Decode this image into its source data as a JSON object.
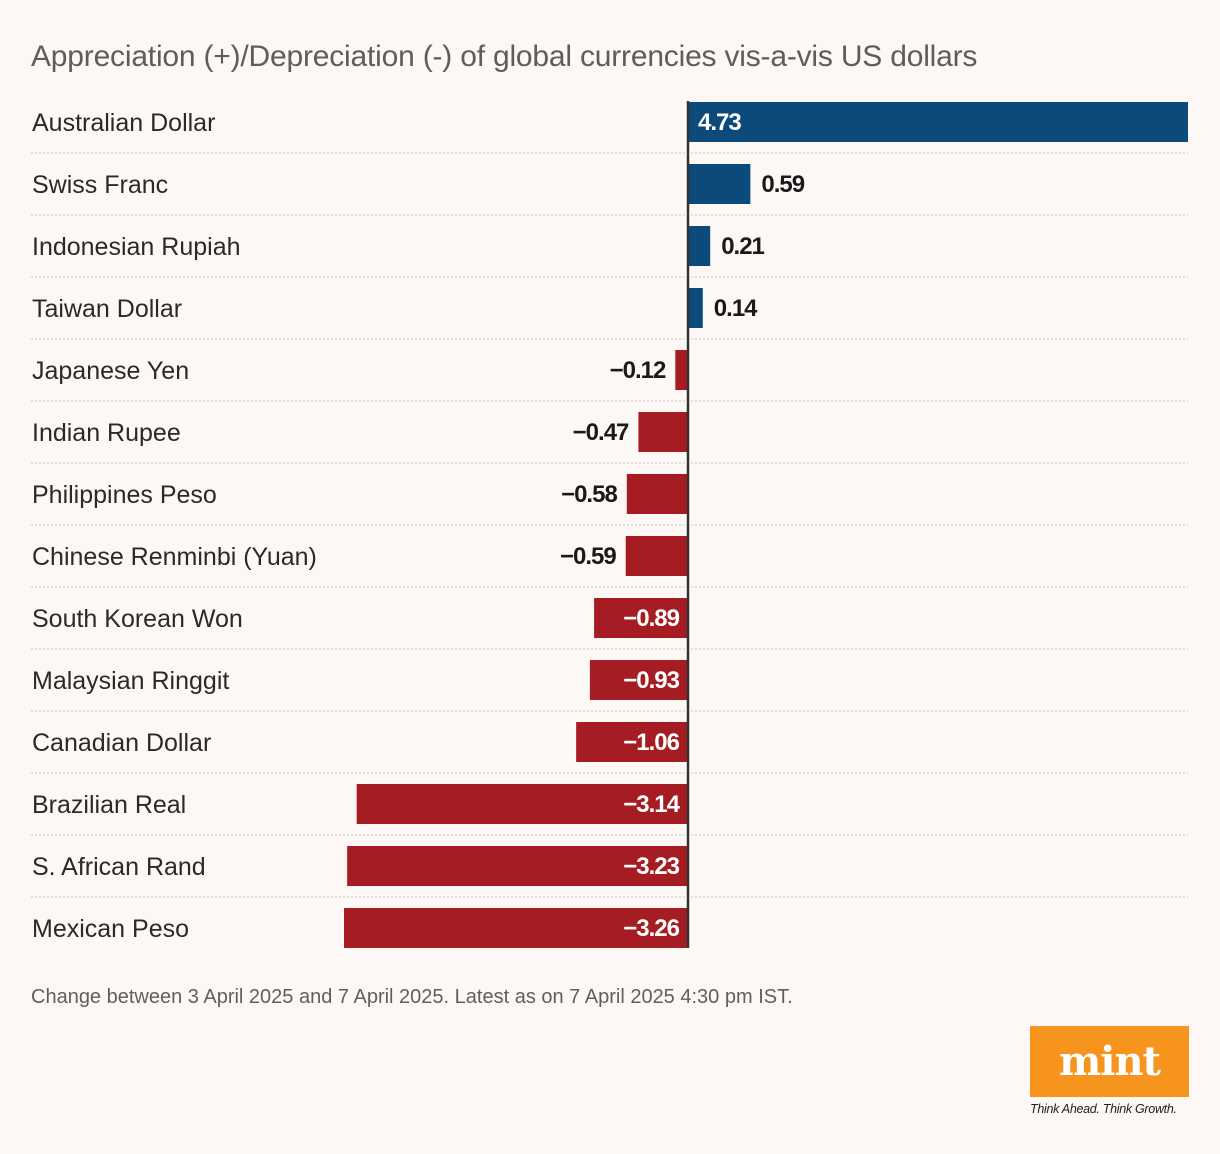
{
  "chart_data": {
    "type": "bar",
    "orientation": "horizontal",
    "title": "Appreciation (+)/Depreciation (-) of global currencies vis-a-vis US dollars",
    "categories": [
      "Australian Dollar",
      "Swiss Franc",
      "Indonesian Rupiah",
      "Taiwan Dollar",
      "Japanese Yen",
      "Indian Rupee",
      "Philippines Peso",
      "Chinese Renminbi (Yuan)",
      "South Korean Won",
      "Malaysian Ringgit",
      "Canadian Dollar",
      "Brazilian Real",
      "S. African Rand",
      "Mexican Peso"
    ],
    "values": [
      4.73,
      0.59,
      0.21,
      0.14,
      -0.12,
      -0.47,
      -0.58,
      -0.59,
      -0.89,
      -0.93,
      -1.06,
      -3.14,
      -3.23,
      -3.26
    ],
    "labels": [
      "4.73",
      "0.59",
      "0.21",
      "0.14",
      "−0.12",
      "−0.47",
      "−0.58",
      "−0.59",
      "−0.89",
      "−0.93",
      "−1.06",
      "−3.14",
      "−3.23",
      "−3.26"
    ],
    "xlim": [
      -3.26,
      4.73
    ],
    "xlabel": "",
    "ylabel": "",
    "grid": false,
    "colors": {
      "positive": "#0b4a7a",
      "negative": "#a51d22"
    }
  },
  "footnote": "Change between 3 April 2025 and 7 April 2025. Latest as on 7 April 2025 4:30 pm IST.",
  "brand": {
    "logo": "mint",
    "tagline": "Think Ahead. Think Growth.",
    "color": "#f7941d"
  }
}
